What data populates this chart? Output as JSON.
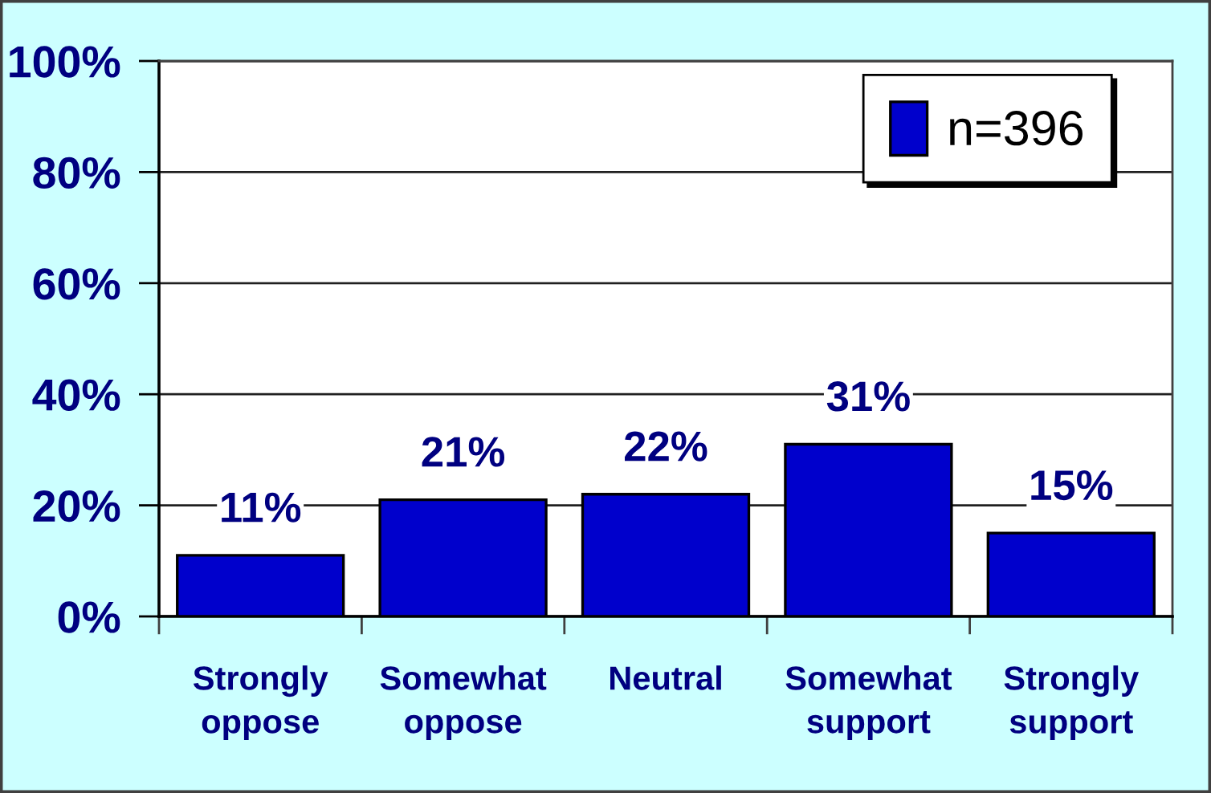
{
  "chart_data": {
    "type": "bar",
    "categories": [
      "Strongly oppose",
      "Somewhat oppose",
      "Neutral",
      "Somewhat support",
      "Strongly support"
    ],
    "series": [
      {
        "name": "n=396",
        "color": "#0000cc",
        "values": [
          11,
          21,
          22,
          31,
          15
        ],
        "value_labels": [
          "11%",
          "21%",
          "22%",
          "31%",
          "15%"
        ]
      }
    ],
    "ylim": [
      0,
      100
    ],
    "yticks": [
      {
        "value": 0,
        "label": "0%"
      },
      {
        "value": 20,
        "label": "20%"
      },
      {
        "value": 40,
        "label": "40%"
      },
      {
        "value": 60,
        "label": "60%"
      },
      {
        "value": 80,
        "label": "80%"
      },
      {
        "value": 100,
        "label": "100%"
      }
    ],
    "grid": "y",
    "legend": "top right"
  }
}
